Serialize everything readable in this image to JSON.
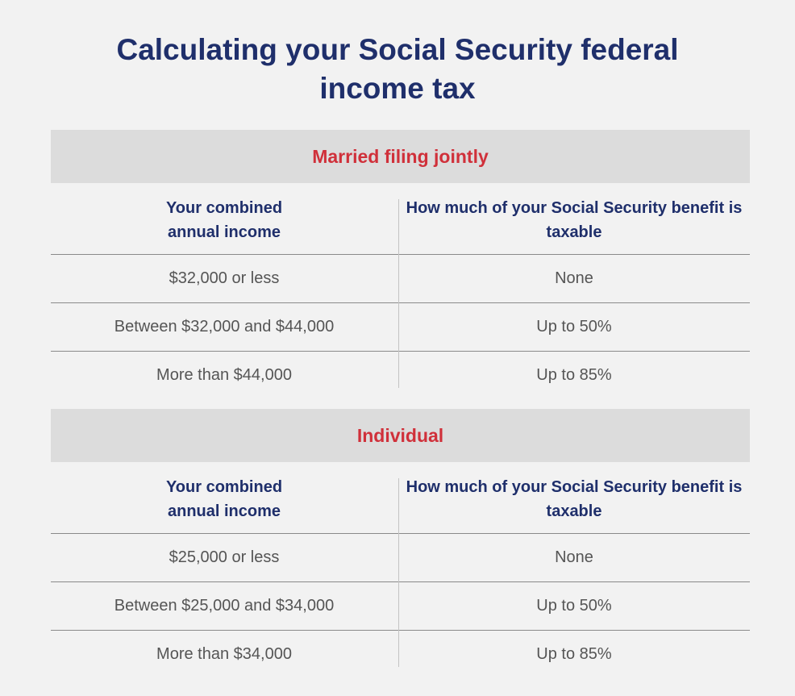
{
  "header": {
    "title": "Calculating your Social Security federal income tax"
  },
  "sections": [
    {
      "title": "Married filing jointly",
      "columns": [
        "Your combined annual income",
        "How much of your Social Security benefit is taxable"
      ],
      "rows": [
        [
          "$32,000 or less",
          "None"
        ],
        [
          "Between $32,000 and $44,000",
          "Up to 50%"
        ],
        [
          "More than $44,000",
          "Up to 85%"
        ]
      ]
    },
    {
      "title": "Individual",
      "columns": [
        "Your combined annual income",
        "How much of your Social Security benefit is taxable"
      ],
      "rows": [
        [
          "$25,000 or less",
          "None"
        ],
        [
          "Between $25,000 and $34,000",
          "Up to 50%"
        ],
        [
          "More than $34,000",
          "Up to 85%"
        ]
      ]
    }
  ]
}
